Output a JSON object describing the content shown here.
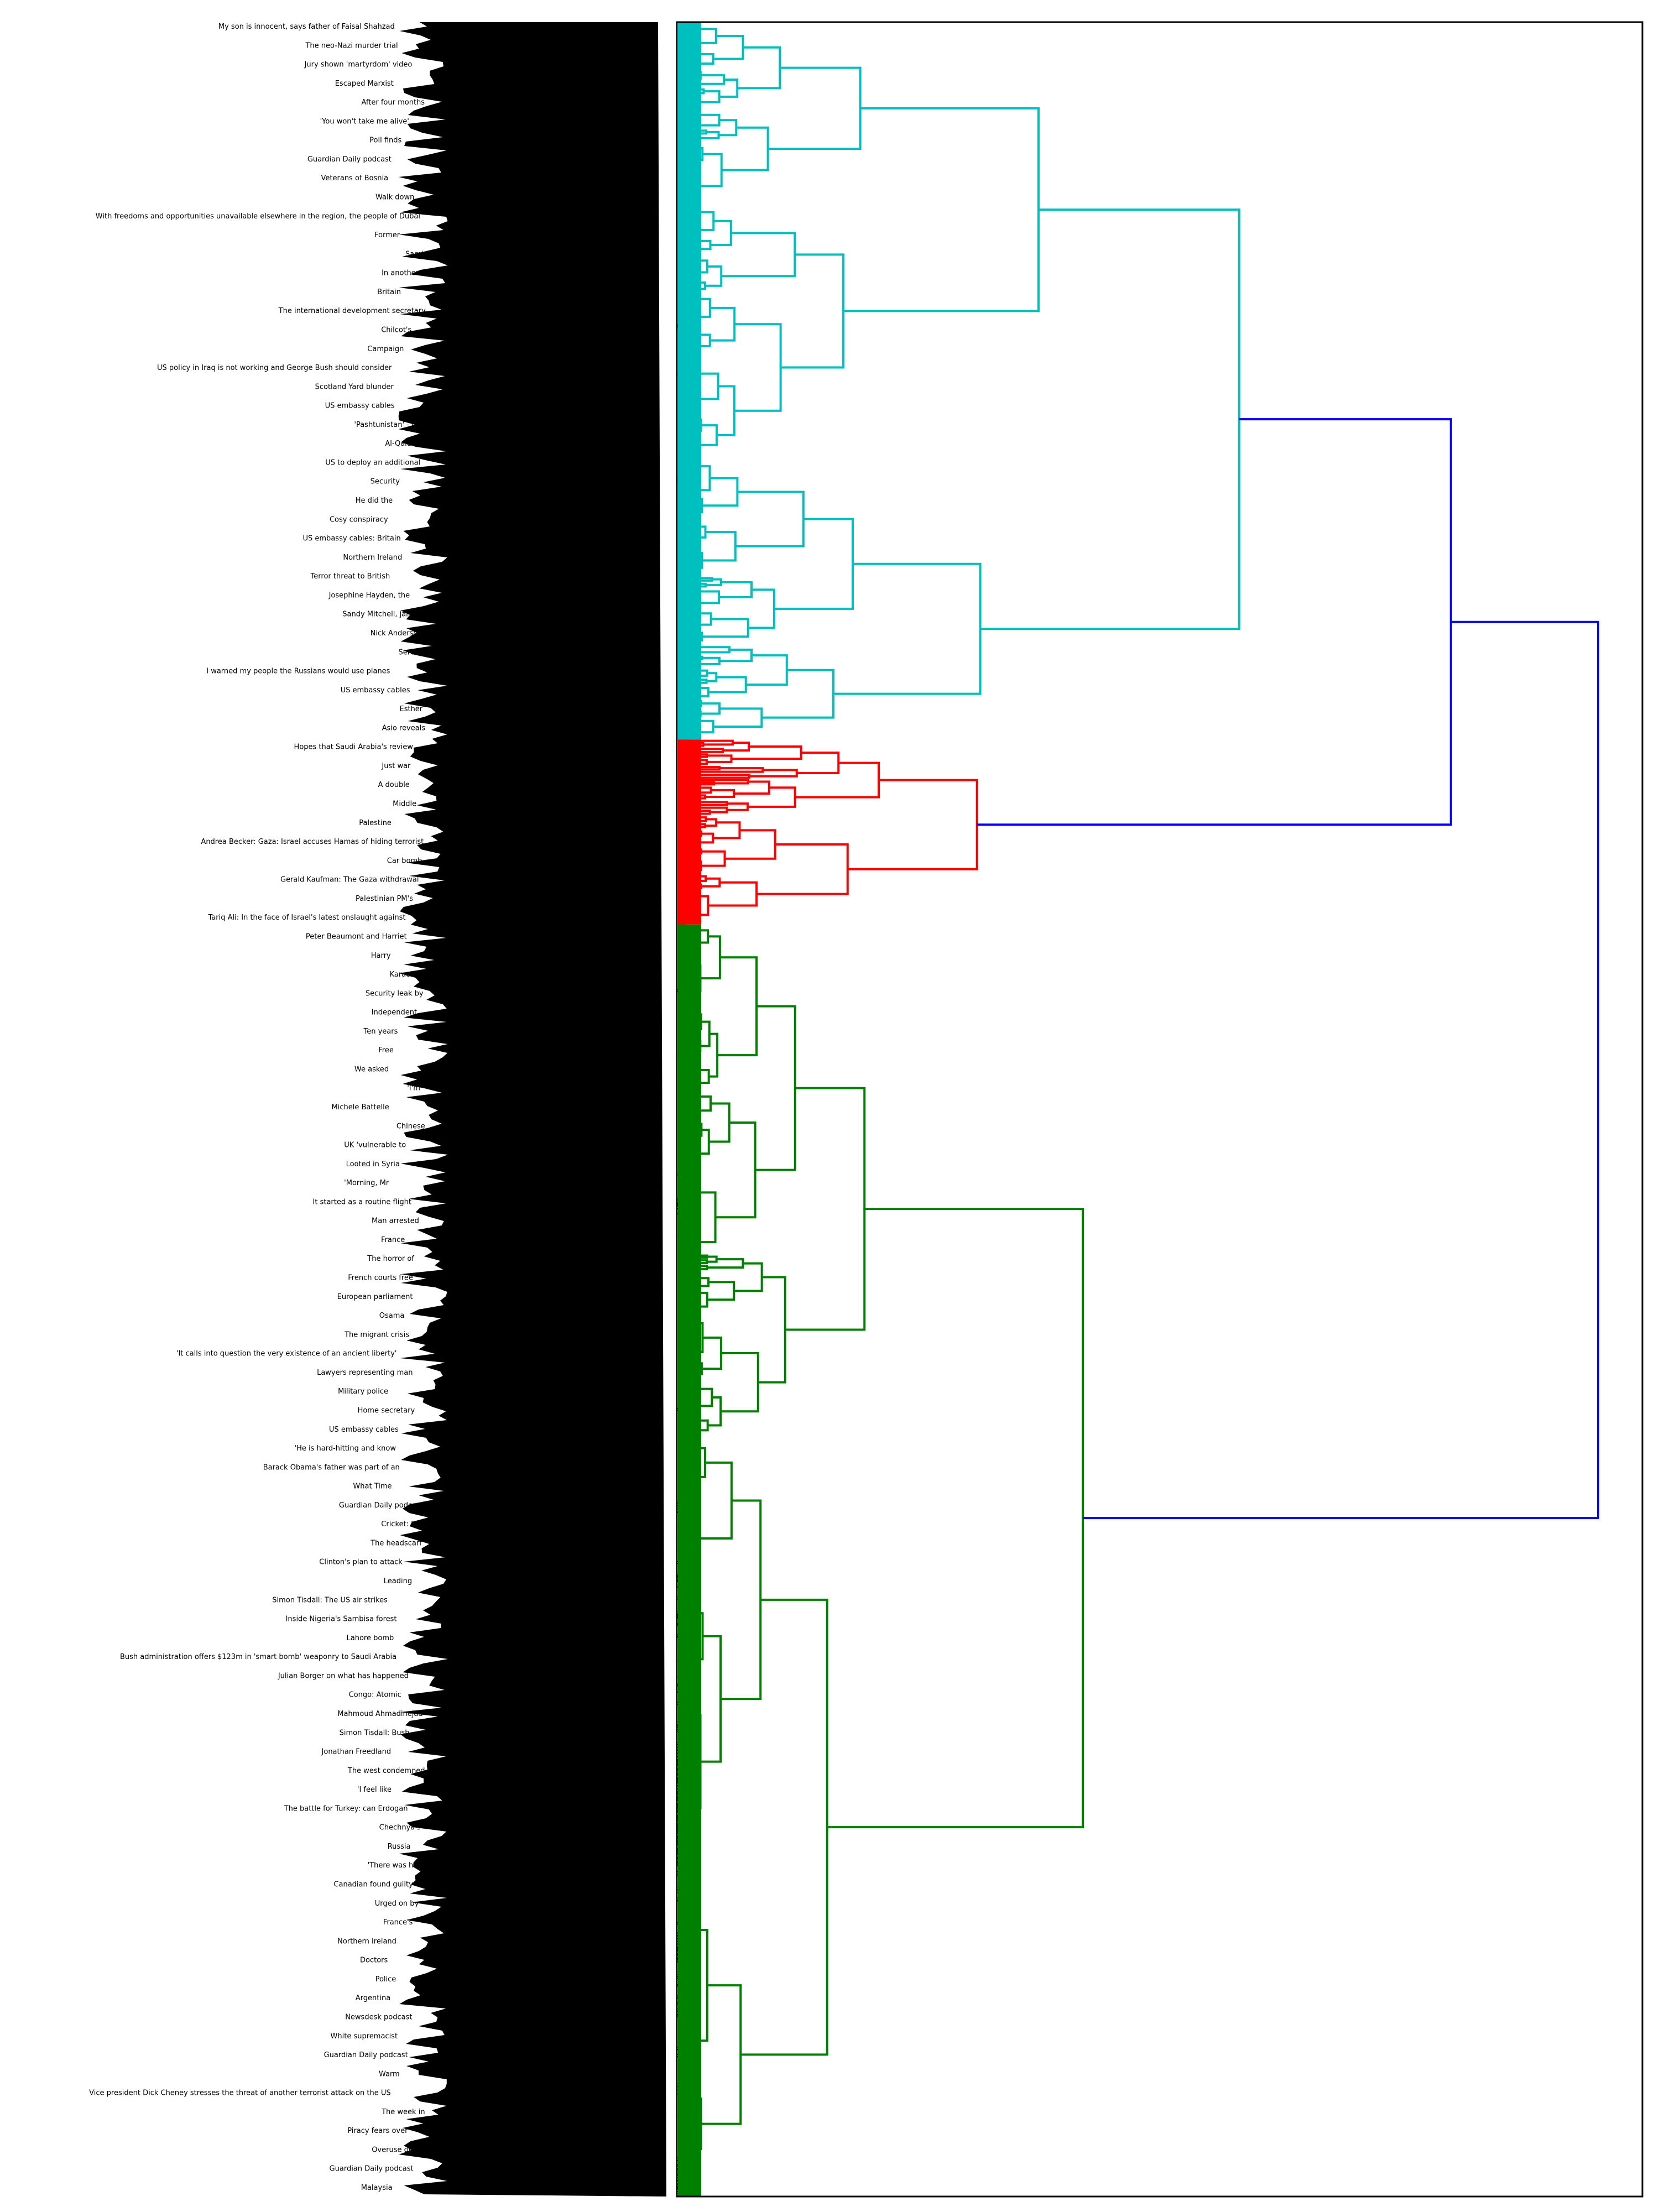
{
  "chart_data": {
    "type": "dendrogram",
    "title": "",
    "orientation": "left-labels, tree-grows-right",
    "colors": {
      "cluster_1": "#00bfbf",
      "cluster_2": "#ff0000",
      "cluster_3": "#008000",
      "root": "#0000ff",
      "label_mass": "#000000"
    },
    "clusters": [
      {
        "name": "cluster_1",
        "color": "#00bfbf",
        "leaf_range": [
          0,
          0.33
        ],
        "merge_height": 0.61
      },
      {
        "name": "cluster_2",
        "color": "#ff0000",
        "leaf_range": [
          0.33,
          0.415
        ],
        "merge_height": 0.325
      },
      {
        "name": "cluster_3",
        "color": "#008000",
        "leaf_range": [
          0.415,
          1.0
        ],
        "merge_height": 0.44
      }
    ],
    "root_merges": [
      {
        "children": [
          "cluster_1",
          "cluster_2"
        ],
        "height": 0.84
      },
      {
        "children": [
          "cluster_1+cluster_2",
          "cluster_3"
        ],
        "height": 1.0
      }
    ],
    "labels": [
      "My son is innocent, says father of Faisal Shahzad",
      "The neo-Nazi murder trial",
      "Jury shown 'martyrdom' video",
      "Escaped Marxist",
      "After four months",
      "'You won't take me alive'",
      "Poll finds",
      "Guardian Daily podcast",
      "Veterans of Bosnia",
      "Walk down",
      "With freedoms and opportunities unavailable elsewhere in the region, the people of Dubai",
      "Former",
      "Sami",
      "In another",
      "Britain",
      "The international development secretary",
      "Chilcot's",
      "Campaign",
      "US policy in Iraq is not working and George Bush should consider",
      "Scotland Yard blunder",
      "US embassy cables",
      "'Pashtunistan' - the",
      "Al-Qaida's",
      "US to deploy an additional",
      "Security",
      "He did the",
      "Cosy conspiracy",
      "US embassy cables: Britain",
      "Northern Ireland",
      "Terror threat to British",
      "Josephine Hayden, the",
      "Sandy Mitchell, jailed",
      "Nick Anderson",
      "Serena",
      "I warned my people the Russians would use planes",
      "US embassy cables",
      "Esther",
      "Asio reveals",
      "Hopes that Saudi Arabia's review",
      "Just war",
      "A double",
      "Middle",
      "Palestine",
      "Andrea Becker: Gaza: Israel accuses Hamas of hiding terrorist",
      "Car bomb",
      "Gerald Kaufman: The Gaza withdrawal",
      "Palestinian PM's",
      "Tariq Ali: In the face of Israel's latest onslaught against",
      "Peter Beaumont and Harriet",
      "Harry",
      "Karachi",
      "Security leak by",
      "Independent",
      "Ten years",
      "Free",
      "We asked",
      "'I'm",
      "Michele Battelle",
      "Chinese",
      "UK 'vulnerable to",
      "Looted in Syria",
      "'Morning, Mr",
      "It started as a routine flight",
      "Man arrested",
      "France",
      "The horror of",
      "French courts free",
      "European parliament",
      "Osama",
      "The migrant crisis",
      "'It calls into question the very existence of an ancient liberty'",
      "Lawyers representing man",
      "Military police",
      "Home secretary",
      "US embassy cables",
      "'He is hard-hitting and know",
      "Barack Obama's father was part of an",
      "What Time",
      "Guardian Daily podcast",
      "Cricket: ICC",
      "The headscarf",
      "Clinton's plan to attack",
      "Leading",
      "Simon Tisdall: The US air strikes",
      "Inside Nigeria's Sambisa forest",
      "Lahore bomb",
      "Bush administration offers $123m in 'smart bomb' weaponry to Saudi Arabia",
      "Julian Borger on what has happened",
      "Congo: Atomic",
      "Mahmoud Ahmadinejad",
      "Simon Tisdall: Bush",
      "Jonathan Freedland",
      "The west condemned",
      "'I feel like",
      "The battle for Turkey: can Erdogan",
      "Chechnya's",
      "Russia",
      "'There was hero",
      "Canadian found guilty of",
      "Urged on by",
      "France's",
      "Northern Ireland",
      "Doctors",
      "Police",
      "Argentina",
      "Newsdesk podcast",
      "White supremacist",
      "Guardian Daily podcast",
      "Warm",
      "Vice president Dick Cheney stresses the threat of another terrorist attack on the US",
      "The week in",
      "Piracy fears over",
      "Overuse of",
      "Guardian Daily podcast",
      "Malaysia"
    ]
  }
}
